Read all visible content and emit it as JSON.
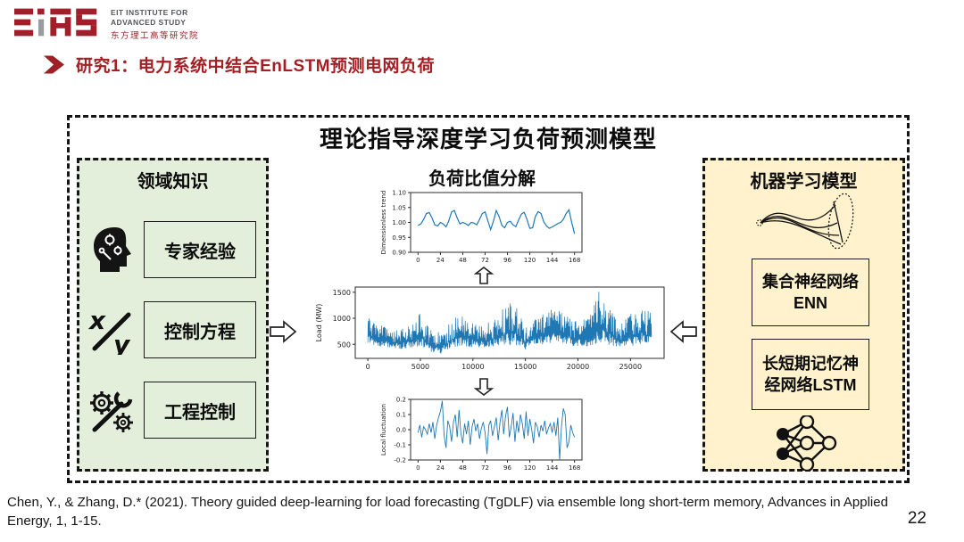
{
  "slide": {
    "logo": {
      "mark": "EIAS",
      "line1": "EIT INSTITUTE FOR",
      "line2": "ADVANCED STUDY",
      "line3": "东方理工高等研究院"
    },
    "heading": "研究1：电力系统中结合EnLSTM预测电网负荷",
    "citation": "Chen, Y., & Zhang, D.* (2021). Theory guided deep-learning for load forecasting (TgDLF) via ensemble long short-term memory, Advances in Applied Energy, 1, 1-15.",
    "page_number": "22"
  },
  "diagram": {
    "title": "理论指导深度学习负荷预测模型",
    "left_panel": {
      "title": "领域知识",
      "items": [
        {
          "icon": "expert-head-icon",
          "label": "专家经验"
        },
        {
          "icon": "equations-icon",
          "label": "控制方程"
        },
        {
          "icon": "gears-wrench-icon",
          "label": "工程控制"
        }
      ]
    },
    "middle_panel": {
      "title": "负荷比值分解"
    },
    "right_panel": {
      "title": "机器学习模型",
      "items": [
        {
          "label": "集合神经网络ENN"
        },
        {
          "label": "长短期记忆神经网络LSTM"
        }
      ]
    }
  },
  "colors": {
    "brand_red": "#a21e28",
    "heading_red": "#a31f24",
    "panel_green": "#e3efda",
    "panel_yellow": "#fff2cc",
    "chart_line_blue": "#1f77b4",
    "dashed_border": "#151515"
  },
  "chart_data": [
    {
      "type": "line",
      "title": "",
      "xlabel": "",
      "ylabel": "Dimensionless trend",
      "xticks": [
        0,
        24,
        48,
        72,
        96,
        120,
        144,
        168
      ],
      "yticks": [
        0.9,
        0.95,
        1.0,
        1.05,
        1.1
      ],
      "ytick_labels": [
        "0.90",
        "0.95",
        "1.00",
        "1.05",
        "1.10"
      ],
      "xlim": [
        -8,
        176
      ],
      "ylim": [
        0.9,
        1.1
      ],
      "x_start": 0,
      "x_step": 3,
      "values": [
        0.99,
        0.995,
        1.01,
        1.03,
        1.033,
        1.015,
        0.992,
        0.988,
        1.0,
        0.995,
        0.985,
        1.005,
        1.035,
        1.04,
        1.015,
        0.995,
        1.0,
        0.996,
        0.99,
        1.0,
        0.998,
        0.992,
        1.01,
        1.03,
        1.035,
        1.005,
        0.976,
        1.005,
        1.04,
        1.02,
        0.99,
        0.982,
        1.0,
        1.004,
        0.992,
        0.986,
        1.008,
        1.028,
        1.034,
        1.01,
        0.98,
        0.982,
        1.02,
        1.036,
        1.03,
        1.002,
        0.988,
        0.98,
        0.985,
        0.99,
        0.996,
        1.0,
        1.01,
        1.03,
        1.042,
        1.0,
        0.962
      ],
      "color": "#1f77b4",
      "tick_font": 7,
      "line_width": 1.2,
      "grid": false,
      "legend": false
    },
    {
      "type": "noisy-line",
      "title": "",
      "xlabel": "",
      "ylabel": "Load (MW)",
      "xticks": [
        0,
        5000,
        10000,
        15000,
        20000,
        25000
      ],
      "yticks": [
        500,
        1000,
        1500
      ],
      "ytick_labels": [
        "500",
        "1000",
        "1500"
      ],
      "xlim": [
        -1200,
        28200
      ],
      "ylim": [
        230,
        1600
      ],
      "envelope": {
        "x": [
          0,
          1000,
          2000,
          3000,
          4000,
          5000,
          6000,
          7000,
          8000,
          9000,
          10000,
          11000,
          12000,
          13000,
          14000,
          15000,
          16000,
          17000,
          18000,
          19000,
          20000,
          21000,
          22000,
          23000,
          24000,
          25000,
          26000,
          27000
        ],
        "low": [
          520,
          450,
          430,
          400,
          420,
          440,
          340,
          310,
          400,
          450,
          430,
          420,
          450,
          430,
          450,
          390,
          450,
          500,
          520,
          480,
          430,
          450,
          500,
          470,
          430,
          450,
          490,
          430
        ],
        "high": [
          1020,
          900,
          800,
          780,
          860,
          1120,
          800,
          750,
          1000,
          1060,
          950,
          900,
          950,
          1260,
          1350,
          850,
          1000,
          1150,
          1220,
          1050,
          950,
          1000,
          1530,
          1200,
          900,
          1100,
          1260,
          1150
        ]
      },
      "samples": 760,
      "color": "#1f77b4",
      "tick_font": 8,
      "line_width": 0.7,
      "grid": false,
      "legend": false
    },
    {
      "type": "line",
      "title": "",
      "xlabel": "",
      "ylabel": "Local fluctuation",
      "xticks": [
        0,
        24,
        48,
        72,
        96,
        120,
        144,
        168
      ],
      "yticks": [
        -0.2,
        -0.1,
        0.0,
        0.1,
        0.2
      ],
      "ytick_labels": [
        "-0.2",
        "-0.1",
        "0.0",
        "0.1",
        "0.2"
      ],
      "xlim": [
        -8,
        176
      ],
      "ylim": [
        -0.2,
        0.2
      ],
      "x_start": 0,
      "x_step": 2,
      "values": [
        -0.02,
        0.03,
        -0.05,
        0.02,
        0.0,
        -0.03,
        0.04,
        -0.02,
        0.05,
        -0.06,
        0.03,
        0.08,
        0.12,
        0.19,
        -0.04,
        -0.12,
        0.06,
        0.02,
        -0.08,
        0.05,
        0.1,
        -0.05,
        0.13,
        -0.02,
        -0.09,
        0.04,
        -0.03,
        0.06,
        -0.1,
        0.02,
        0.07,
        -0.01,
        0.04,
        -0.06,
        0.01,
        0.05,
        -0.02,
        -0.16,
        0.03,
        0.06,
        -0.04,
        0.02,
        0.08,
        -0.07,
        0.05,
        0.13,
        -0.03,
        0.09,
        0.15,
        -0.05,
        0.02,
        0.11,
        -0.08,
        0.06,
        -0.02,
        0.1,
        0.04,
        -0.06,
        0.12,
        -0.04,
        0.07,
        0.0,
        -0.09,
        0.05,
        0.02,
        -0.05,
        0.03,
        -0.01,
        0.06,
        -0.03,
        0.01,
        0.04,
        -0.02,
        0.05,
        -0.04,
        0.08,
        -0.2,
        0.02,
        0.14,
        0.1,
        -0.12,
        -0.08,
        0.03,
        -0.02,
        -0.05
      ],
      "color": "#1f77b4",
      "tick_font": 7,
      "line_width": 0.9,
      "grid": false,
      "legend": false
    }
  ]
}
